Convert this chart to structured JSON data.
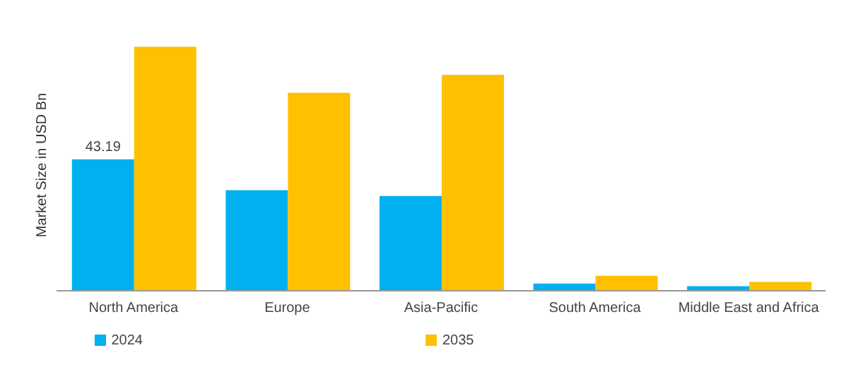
{
  "chart_data": {
    "type": "bar",
    "ylabel": "Market Size in USD Bn",
    "categories": [
      "North America",
      "Europe",
      "Asia-Pacific",
      "South America",
      "Middle East and Africa"
    ],
    "series": [
      {
        "name": "2024",
        "color": "#00b0f0",
        "values": [
          43.19,
          33.0,
          31.1,
          2.4,
          1.5
        ],
        "value_labels": [
          "43.19",
          null,
          null,
          null,
          null
        ]
      },
      {
        "name": "2035",
        "color": "#ffc000",
        "values": [
          80.1,
          65.0,
          70.9,
          4.9,
          2.9
        ]
      }
    ],
    "legend": "bottom",
    "grid": false
  }
}
